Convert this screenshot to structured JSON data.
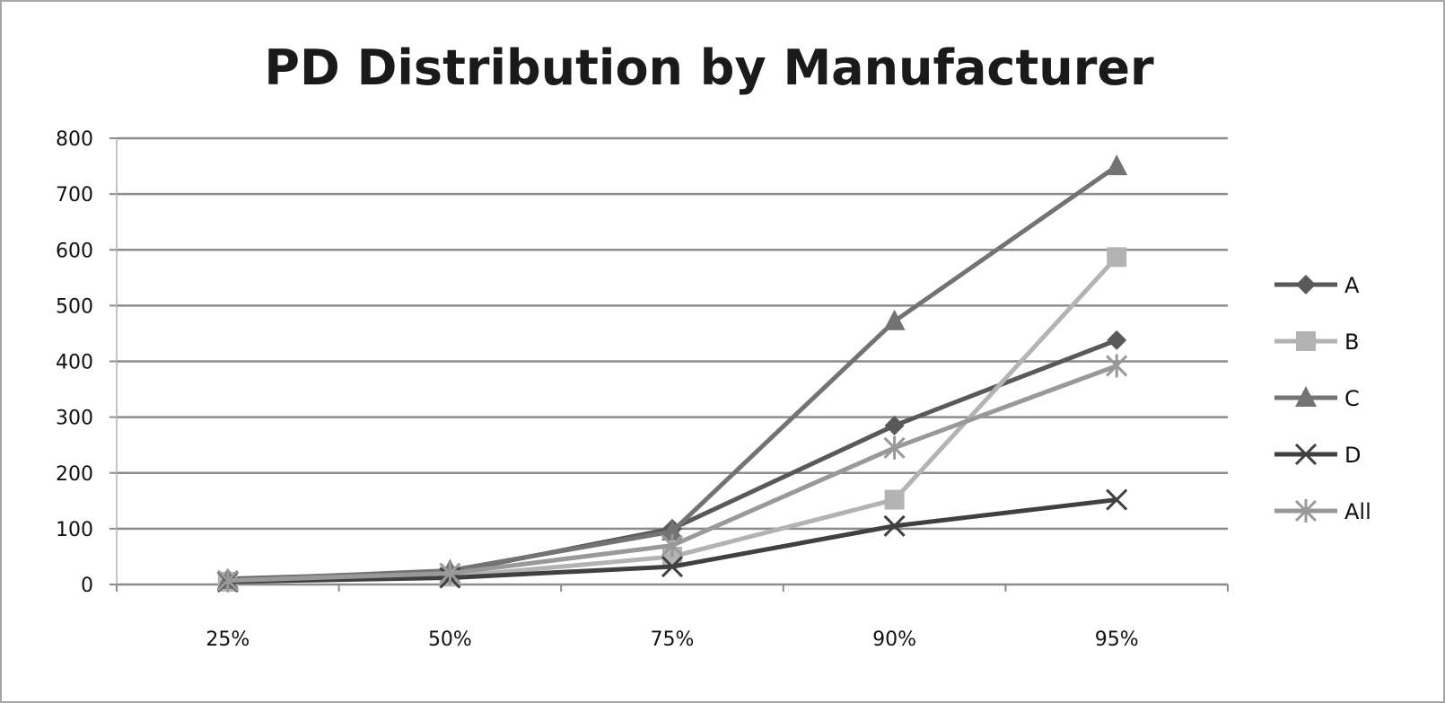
{
  "chart_data": {
    "type": "line",
    "title": "PD Distribution by Manufacturer",
    "xlabel": "",
    "ylabel": "",
    "categories": [
      "25%",
      "50%",
      "75%",
      "90%",
      "95%"
    ],
    "ylim": [
      0,
      800
    ],
    "yticks": [
      0,
      100,
      200,
      300,
      400,
      500,
      600,
      700,
      800
    ],
    "grid": "horizontal",
    "legend_position": "right",
    "series": [
      {
        "name": "A",
        "values": [
          10,
          22,
          100,
          285,
          438
        ],
        "color": "#595959",
        "marker": "diamond"
      },
      {
        "name": "B",
        "values": [
          5,
          14,
          50,
          152,
          587
        ],
        "color": "#b3b3b3",
        "marker": "square"
      },
      {
        "name": "C",
        "values": [
          8,
          25,
          95,
          472,
          750
        ],
        "color": "#737373",
        "marker": "triangle"
      },
      {
        "name": "D",
        "values": [
          5,
          12,
          32,
          105,
          152
        ],
        "color": "#404040",
        "marker": "x"
      },
      {
        "name": "All",
        "values": [
          7,
          20,
          70,
          245,
          392
        ],
        "color": "#999999",
        "marker": "star"
      }
    ]
  }
}
